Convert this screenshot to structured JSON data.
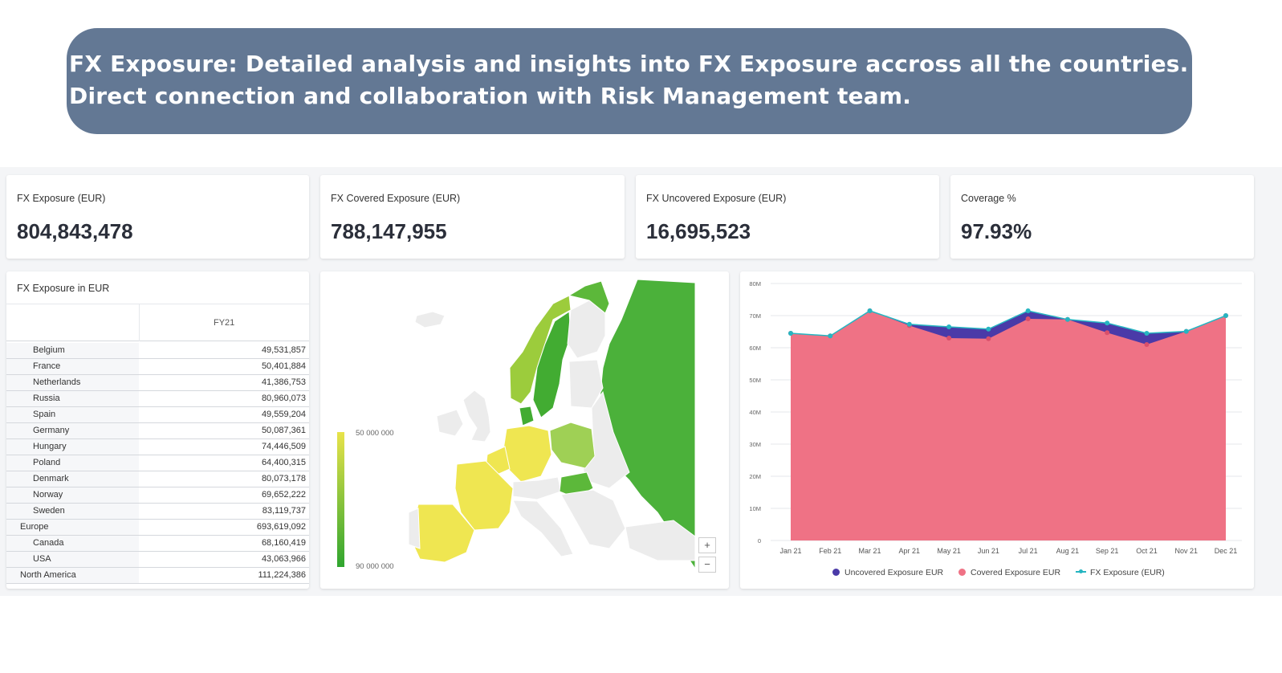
{
  "banner": {
    "line1": "FX Exposure: Detailed analysis and insights into FX Exposure accross all the countries.",
    "line2": "Direct connection and collaboration with Risk Management team."
  },
  "kpis": [
    {
      "title": "FX Exposure (EUR)",
      "value": "804,843,478"
    },
    {
      "title": "FX Covered Exposure (EUR)",
      "value": "788,147,955"
    },
    {
      "title": "FX Uncovered Exposure (EUR)",
      "value": "16,695,523"
    },
    {
      "title": "Coverage %",
      "value": "97.93%"
    }
  ],
  "table": {
    "title": "FX Exposure in EUR",
    "column": "FY21",
    "rows": [
      {
        "label": "Belgium",
        "value": "49,531,857",
        "level": 2
      },
      {
        "label": "France",
        "value": "50,401,884",
        "level": 2
      },
      {
        "label": "Netherlands",
        "value": "41,386,753",
        "level": 2
      },
      {
        "label": "Russia",
        "value": "80,960,073",
        "level": 2
      },
      {
        "label": "Spain",
        "value": "49,559,204",
        "level": 2
      },
      {
        "label": "Germany",
        "value": "50,087,361",
        "level": 2
      },
      {
        "label": "Hungary",
        "value": "74,446,509",
        "level": 2
      },
      {
        "label": "Poland",
        "value": "64,400,315",
        "level": 2
      },
      {
        "label": "Denmark",
        "value": "80,073,178",
        "level": 2
      },
      {
        "label": "Norway",
        "value": "69,652,222",
        "level": 2
      },
      {
        "label": "Sweden",
        "value": "83,119,737",
        "level": 2
      },
      {
        "label": "Europe",
        "value": "693,619,092",
        "level": 1
      },
      {
        "label": "Canada",
        "value": "68,160,419",
        "level": 2
      },
      {
        "label": "USA",
        "value": "43,063,966",
        "level": 2
      },
      {
        "label": "North America",
        "value": "111,224,386",
        "level": 1
      }
    ]
  },
  "map": {
    "scale_top_label": "50 000 000",
    "scale_bottom_label": "90 000 000",
    "zoom_in": "+",
    "zoom_out": "−",
    "colors": {
      "low": "#e8e34a",
      "high": "#2fa52f",
      "none": "#ececec"
    }
  },
  "chart_data": {
    "type": "area",
    "categories": [
      "Jan 21",
      "Feb 21",
      "Mar 21",
      "Apr 21",
      "May 21",
      "Jun 21",
      "Jul 21",
      "Aug 21",
      "Sep 21",
      "Oct 21",
      "Nov 21",
      "Dec 21"
    ],
    "y_tick_labels": [
      "0",
      "10M",
      "20M",
      "30M",
      "40M",
      "50M",
      "60M",
      "70M",
      "80M"
    ],
    "ylim": [
      0,
      80000000
    ],
    "grid": true,
    "legend_position": "bottom",
    "series": [
      {
        "name": "Uncovered Exposure EUR",
        "kind": "stacked-area",
        "color": "#4a3aa8",
        "values": [
          0,
          0,
          0,
          400000,
          3500000,
          3000000,
          2500000,
          0,
          3000000,
          3500000,
          0,
          0
        ]
      },
      {
        "name": "Covered Exposure EUR",
        "kind": "stacked-area",
        "color": "#ef7285",
        "values": [
          64500000,
          63700000,
          71500000,
          66900000,
          63000000,
          62800000,
          69000000,
          68800000,
          64700000,
          61000000,
          65100000,
          70000000
        ]
      },
      {
        "name": "FX Exposure (EUR)",
        "kind": "line",
        "color": "#26b5c1",
        "values": [
          64500000,
          63700000,
          71500000,
          67300000,
          66500000,
          65800000,
          71500000,
          68800000,
          67700000,
          64500000,
          65100000,
          70000000
        ]
      }
    ]
  }
}
